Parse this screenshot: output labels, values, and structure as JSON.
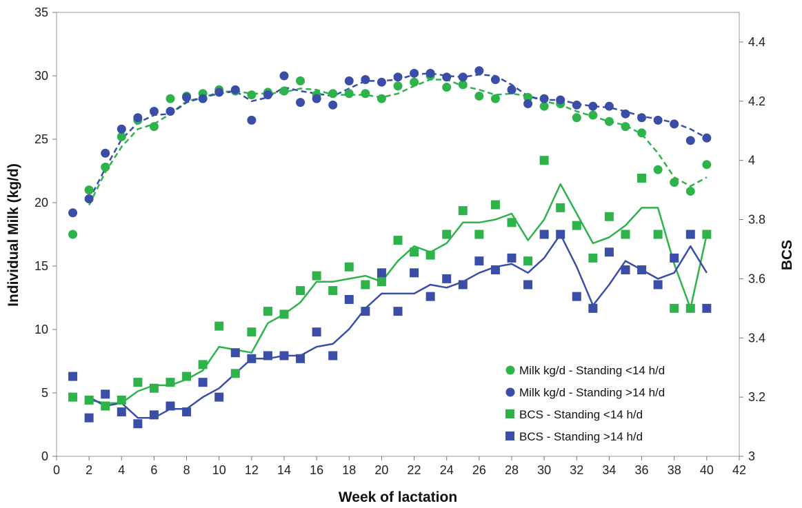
{
  "chart_data": {
    "type": "scatter",
    "xlabel": "Week of lactation",
    "ylabel_left": "Individual Milk (kg/d)",
    "ylabel_right": "BCS",
    "xlim": [
      0,
      42
    ],
    "xticks": [
      0,
      2,
      4,
      6,
      8,
      10,
      12,
      14,
      16,
      18,
      20,
      22,
      24,
      26,
      28,
      30,
      32,
      34,
      36,
      38,
      40,
      42
    ],
    "ylim_left": [
      0,
      35
    ],
    "yticks_left": [
      0,
      5,
      10,
      15,
      20,
      25,
      30,
      35
    ],
    "ylim_right": [
      3,
      4.5
    ],
    "yticks_right": [
      "3",
      "3.2",
      "3.4",
      "3.6",
      "3.8",
      "4",
      "4.2",
      "4.4"
    ],
    "grid": false,
    "legend_position": "bottom-right",
    "colors": {
      "green": "#2db34a",
      "blue": "#3a4ea8"
    },
    "series": [
      {
        "name": "Milk kg/d - Standing <14 h/d",
        "marker": "circle",
        "color": "#2db34a",
        "axis": "left",
        "x": [
          1,
          2,
          3,
          4,
          5,
          6,
          7,
          8,
          9,
          10,
          11,
          12,
          13,
          14,
          15,
          16,
          17,
          18,
          19,
          20,
          21,
          22,
          23,
          24,
          25,
          26,
          27,
          28,
          29,
          30,
          31,
          32,
          33,
          34,
          35,
          36,
          37,
          38,
          39,
          40
        ],
        "y": [
          17.5,
          21.0,
          22.8,
          25.2,
          26.5,
          26.0,
          28.2,
          28.4,
          28.6,
          28.9,
          28.8,
          28.5,
          28.7,
          28.8,
          29.6,
          28.5,
          28.6,
          28.6,
          28.6,
          28.2,
          29.2,
          29.5,
          30.0,
          29.1,
          29.3,
          28.4,
          28.2,
          28.9,
          28.3,
          27.6,
          27.8,
          26.7,
          26.9,
          26.4,
          26.0,
          25.5,
          22.6,
          21.6,
          20.9,
          23.0
        ]
      },
      {
        "name": "Milk kg/d - Standing >14 h/d",
        "marker": "circle",
        "color": "#3a4ea8",
        "axis": "left",
        "x": [
          1,
          2,
          3,
          4,
          5,
          6,
          7,
          8,
          9,
          10,
          11,
          12,
          13,
          14,
          15,
          16,
          17,
          18,
          19,
          20,
          21,
          22,
          23,
          24,
          25,
          26,
          27,
          28,
          29,
          30,
          31,
          32,
          33,
          34,
          35,
          36,
          37,
          38,
          39,
          40
        ],
        "y": [
          19.2,
          20.3,
          23.9,
          25.8,
          26.7,
          27.2,
          27.2,
          28.3,
          28.2,
          28.7,
          28.9,
          26.5,
          28.5,
          30.0,
          27.9,
          28.2,
          27.7,
          29.6,
          29.7,
          29.5,
          29.9,
          30.2,
          30.2,
          29.9,
          29.9,
          30.4,
          29.7,
          28.9,
          27.8,
          28.2,
          28.1,
          27.7,
          27.6,
          27.6,
          27.0,
          26.7,
          26.5,
          26.2,
          24.9,
          25.1
        ]
      },
      {
        "name": "BCS - Standing <14 h/d",
        "marker": "square",
        "color": "#2db34a",
        "axis": "right",
        "x": [
          1,
          2,
          3,
          4,
          5,
          6,
          7,
          8,
          9,
          10,
          11,
          12,
          13,
          14,
          15,
          16,
          17,
          18,
          19,
          20,
          21,
          22,
          23,
          24,
          25,
          26,
          27,
          28,
          29,
          30,
          31,
          32,
          33,
          34,
          35,
          36,
          37,
          38,
          39,
          40
        ],
        "y": [
          3.2,
          3.19,
          3.17,
          3.19,
          3.25,
          3.23,
          3.25,
          3.27,
          3.31,
          3.44,
          3.28,
          3.42,
          3.49,
          3.48,
          3.56,
          3.61,
          3.56,
          3.64,
          3.58,
          3.59,
          3.73,
          3.69,
          3.68,
          3.75,
          3.83,
          3.75,
          3.85,
          3.79,
          3.66,
          4.0,
          3.84,
          3.78,
          3.67,
          3.81,
          3.75,
          3.94,
          3.75,
          3.5,
          3.5,
          3.75
        ]
      },
      {
        "name": "BCS - Standing >14 h/d",
        "marker": "square",
        "color": "#3a4ea8",
        "axis": "right",
        "x": [
          1,
          2,
          3,
          4,
          5,
          6,
          7,
          8,
          9,
          10,
          11,
          12,
          13,
          14,
          15,
          16,
          17,
          18,
          19,
          20,
          21,
          22,
          23,
          24,
          25,
          26,
          27,
          28,
          29,
          30,
          31,
          32,
          33,
          34,
          35,
          36,
          37,
          38,
          39,
          40
        ],
        "y": [
          3.27,
          3.13,
          3.21,
          3.15,
          3.11,
          3.14,
          3.17,
          3.15,
          3.25,
          3.2,
          3.35,
          3.33,
          3.34,
          3.34,
          3.33,
          3.42,
          3.34,
          3.53,
          3.49,
          3.62,
          3.49,
          3.62,
          3.54,
          3.6,
          3.58,
          3.66,
          3.63,
          3.67,
          3.58,
          3.75,
          3.75,
          3.54,
          3.5,
          3.69,
          3.63,
          3.63,
          3.58,
          3.67,
          3.75,
          3.5
        ]
      }
    ],
    "trendlines": [
      {
        "style": "dashed",
        "color": "#2db34a",
        "axis": "left",
        "x": [
          2,
          3,
          4,
          5,
          6,
          7,
          8,
          9,
          10,
          11,
          12,
          13,
          14,
          15,
          16,
          17,
          18,
          19,
          20,
          21,
          22,
          23,
          24,
          25,
          26,
          27,
          28,
          29,
          30,
          31,
          32,
          33,
          34,
          35,
          36,
          37,
          38,
          39,
          40
        ],
        "y": [
          19.8,
          22.4,
          24.4,
          25.8,
          26.2,
          27.0,
          28.0,
          28.3,
          28.7,
          28.8,
          28.6,
          28.6,
          28.7,
          29.0,
          28.9,
          28.5,
          28.5,
          28.5,
          28.3,
          28.6,
          29.2,
          29.7,
          29.7,
          29.2,
          28.9,
          28.5,
          28.6,
          28.4,
          28.0,
          27.7,
          27.2,
          26.8,
          26.4,
          26.1,
          25.4,
          23.9,
          22.0,
          21.3,
          22.0
        ]
      },
      {
        "style": "dashed",
        "color": "#3a4ea8",
        "axis": "left",
        "x": [
          2,
          3,
          4,
          5,
          6,
          7,
          8,
          9,
          10,
          11,
          12,
          13,
          14,
          15,
          16,
          17,
          18,
          19,
          20,
          21,
          22,
          23,
          24,
          25,
          26,
          27,
          28,
          29,
          30,
          31,
          32,
          33,
          34,
          35,
          36,
          37,
          38,
          39,
          40
        ],
        "y": [
          20.2,
          22.7,
          25.0,
          26.3,
          26.9,
          27.0,
          27.9,
          28.3,
          28.6,
          28.8,
          28.0,
          28.3,
          29.1,
          28.8,
          28.6,
          28.4,
          29.0,
          29.6,
          29.6,
          29.7,
          30.1,
          30.2,
          30.0,
          29.9,
          30.1,
          30.0,
          29.3,
          28.4,
          28.1,
          28.1,
          27.8,
          27.6,
          27.5,
          27.2,
          26.8,
          26.6,
          26.3,
          25.8,
          25.1
        ]
      },
      {
        "style": "solid",
        "color": "#2db34a",
        "axis": "right",
        "x": [
          2,
          3,
          4,
          5,
          6,
          7,
          8,
          9,
          10,
          11,
          12,
          13,
          14,
          15,
          16,
          17,
          18,
          19,
          20,
          21,
          22,
          23,
          24,
          25,
          26,
          27,
          28,
          29,
          30,
          31,
          32,
          33,
          34,
          35,
          36,
          37,
          38,
          39,
          40
        ],
        "y": [
          3.19,
          3.18,
          3.18,
          3.22,
          3.24,
          3.24,
          3.26,
          3.29,
          3.37,
          3.36,
          3.35,
          3.45,
          3.48,
          3.52,
          3.59,
          3.59,
          3.6,
          3.61,
          3.59,
          3.66,
          3.71,
          3.69,
          3.72,
          3.79,
          3.79,
          3.8,
          3.82,
          3.73,
          3.8,
          3.92,
          3.82,
          3.72,
          3.74,
          3.78,
          3.84,
          3.84,
          3.65,
          3.5,
          3.75
        ]
      },
      {
        "style": "solid",
        "color": "#3a4ea8",
        "axis": "right",
        "x": [
          2,
          3,
          4,
          5,
          6,
          7,
          8,
          9,
          10,
          11,
          12,
          13,
          14,
          15,
          16,
          17,
          18,
          19,
          20,
          21,
          22,
          23,
          24,
          25,
          26,
          27,
          28,
          29,
          30,
          31,
          32,
          33,
          34,
          35,
          36,
          37,
          38,
          39,
          40
        ],
        "y": [
          3.2,
          3.17,
          3.18,
          3.13,
          3.13,
          3.16,
          3.16,
          3.2,
          3.23,
          3.28,
          3.33,
          3.33,
          3.34,
          3.34,
          3.37,
          3.38,
          3.43,
          3.5,
          3.55,
          3.55,
          3.55,
          3.58,
          3.57,
          3.59,
          3.62,
          3.64,
          3.65,
          3.62,
          3.67,
          3.75,
          3.64,
          3.51,
          3.58,
          3.66,
          3.63,
          3.6,
          3.62,
          3.71,
          3.62
        ]
      }
    ]
  }
}
